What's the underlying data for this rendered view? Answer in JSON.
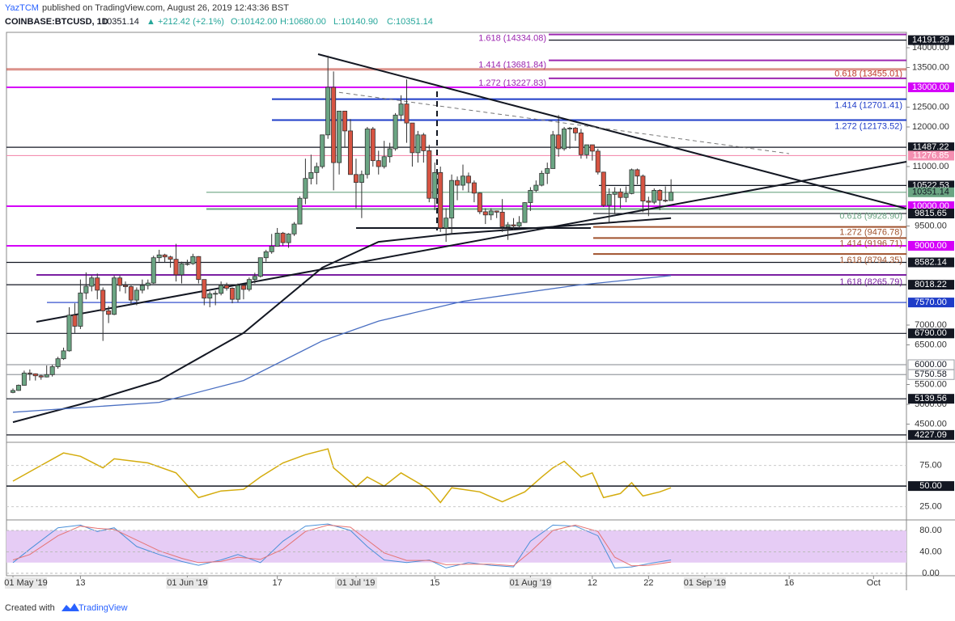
{
  "header": {
    "author": "YazTCM",
    "published": "published on TradingView.com, August 26, 2019 12:43:36 BST",
    "symbol": "COINBASE:BTCUSD, 1D",
    "last": "10351.14",
    "change": "▲ +212.42 (+2.1%)",
    "open": "O:10142.00",
    "high": "H:10680.00",
    "low": "L:10140.90",
    "close": "C:10351.14"
  },
  "footer": {
    "created": "Created with",
    "brand": "TradingView"
  },
  "chart_data": {
    "type": "candlestick",
    "up_color": "#6ba583",
    "down_color": "#d75442",
    "xlim": [
      -1.15,
      158.85
    ],
    "xticks": [
      {
        "value": 0,
        "label": "01 May '19"
      },
      {
        "value": 12,
        "label": "13"
      },
      {
        "value": 31,
        "label": "01 Jun '19"
      },
      {
        "value": 47,
        "label": "17"
      },
      {
        "value": 61,
        "label": "01 Jul '19"
      },
      {
        "value": 75,
        "label": "15"
      },
      {
        "value": 92,
        "label": "01 Aug '19"
      },
      {
        "value": 103,
        "label": "12"
      },
      {
        "value": 113,
        "label": "22"
      },
      {
        "value": 123,
        "label": "01 Sep '19"
      },
      {
        "value": 138,
        "label": "16"
      },
      {
        "value": 153,
        "label": "Oct"
      }
    ],
    "ylim": [
      4082,
      14388
    ],
    "yticks": [
      {
        "value": 14000,
        "label": "14000.00"
      },
      {
        "value": 13500,
        "label": "13500.00"
      },
      {
        "value": 12500,
        "label": "12500.00"
      },
      {
        "value": 12000,
        "label": "12000.00"
      },
      {
        "value": 11000,
        "label": "11000.00"
      },
      {
        "value": 9500,
        "label": "9500.00"
      },
      {
        "value": 7000,
        "label": "7000.00"
      },
      {
        "value": 6500,
        "label": "6500.00"
      },
      {
        "value": 5500,
        "label": "5500.00"
      },
      {
        "value": 5000,
        "label": "5000.00"
      },
      {
        "value": 4500,
        "label": "4500.00"
      }
    ],
    "levels": [
      {
        "value": 14191.29,
        "label": "14191.29",
        "color": "#131722"
      },
      {
        "value": 13000,
        "label": "13000.00",
        "color": "#d500f9"
      },
      {
        "value": 11487.22,
        "label": "11487.22",
        "color": "#131722"
      },
      {
        "value": 11276.85,
        "label": "11276.85",
        "color": "#f48fb1"
      },
      {
        "value": 10522.53,
        "label": "10522.53",
        "color": "#131722"
      },
      {
        "value": 10351.14,
        "label": "10351.14",
        "color": "#6ba583"
      },
      {
        "value": 10000,
        "label": "10000.00",
        "color": "#d500f9"
      },
      {
        "value": 9815.65,
        "label": "9815.65",
        "color": "#131722"
      },
      {
        "value": 9000,
        "label": "9000.00",
        "color": "#d500f9"
      },
      {
        "value": 8582.14,
        "label": "8582.14",
        "color": "#131722"
      },
      {
        "value": 8018.22,
        "label": "8018.22",
        "color": "#131722"
      },
      {
        "value": 7570,
        "label": "7570.00",
        "color": "#1e3cc8"
      },
      {
        "value": 6790,
        "label": "6790.00",
        "color": "#131722"
      },
      {
        "value": 6000,
        "label": "6000.00",
        "color": "#b0b3b8"
      },
      {
        "value": 5750.58,
        "label": "5750.58",
        "color": "#b0b3b8"
      },
      {
        "value": 5139.56,
        "label": "5139.56",
        "color": "#131722"
      },
      {
        "value": 4227.09,
        "label": "4227.09",
        "color": "#131722"
      }
    ],
    "fibs": [
      {
        "value": 14334.08,
        "label": "1.618 (14334.08)",
        "color": "#9c27b0"
      },
      {
        "value": 13681.84,
        "label": "1.414 (13681.84)",
        "color": "#9c27b0"
      },
      {
        "value": 13455.01,
        "label": "0.618 (13455.01)",
        "color": "#c0392b"
      },
      {
        "value": 13227.83,
        "label": "1.272 (13227.83)",
        "color": "#9c27b0"
      },
      {
        "value": 12701.41,
        "label": "1.414 (12701.41)",
        "color": "#1e3cc8"
      },
      {
        "value": 12173.52,
        "label": "1.272 (12173.52)",
        "color": "#1e3cc8"
      },
      {
        "value": 9928.9,
        "label": "0.618 (9928.90)",
        "color": "#6ba583"
      },
      {
        "value": 9476.78,
        "label": "1.272 (9476.78)",
        "color": "#a0522d"
      },
      {
        "value": 9196.71,
        "label": "1.414 (9196.71)",
        "color": "#a0522d"
      },
      {
        "value": 8794.35,
        "label": "1.618 (8794.35)",
        "color": "#a0522d"
      },
      {
        "value": 8265.79,
        "label": "1.618 (8265.79)",
        "color": "#7b1fa2"
      }
    ],
    "ohlc": [
      [
        5300,
        5400,
        5280,
        5350
      ],
      [
        5350,
        5500,
        5340,
        5480
      ],
      [
        5480,
        5850,
        5470,
        5790
      ],
      [
        5790,
        5880,
        5600,
        5770
      ],
      [
        5770,
        5780,
        5600,
        5720
      ],
      [
        5720,
        5750,
        5620,
        5690
      ],
      [
        5690,
        5980,
        5680,
        5750
      ],
      [
        5750,
        6000,
        5700,
        5950
      ],
      [
        5950,
        6200,
        5900,
        6150
      ],
      [
        6150,
        6430,
        6120,
        6350
      ],
      [
        6350,
        7450,
        6330,
        7250
      ],
      [
        7250,
        7550,
        6800,
        6970
      ],
      [
        6970,
        8150,
        6900,
        7810
      ],
      [
        7810,
        8330,
        7650,
        7980
      ],
      [
        7980,
        8250,
        7850,
        8190
      ],
      [
        8190,
        8300,
        7650,
        7880
      ],
      [
        7880,
        7950,
        6600,
        7360
      ],
      [
        7360,
        7480,
        7050,
        7270
      ],
      [
        7270,
        8250,
        7250,
        8190
      ],
      [
        8190,
        8250,
        7850,
        8000
      ],
      [
        8000,
        8100,
        7800,
        7970
      ],
      [
        7970,
        8000,
        7500,
        7630
      ],
      [
        7630,
        7950,
        7500,
        7880
      ],
      [
        7880,
        8150,
        7800,
        8000
      ],
      [
        8000,
        8150,
        7900,
        8060
      ],
      [
        8060,
        8750,
        8040,
        8700
      ],
      [
        8700,
        8900,
        8600,
        8770
      ],
      [
        8770,
        8800,
        8580,
        8720
      ],
      [
        8720,
        8750,
        8450,
        8660
      ],
      [
        8660,
        9050,
        8100,
        8270
      ],
      [
        8270,
        8600,
        8050,
        8550
      ],
      [
        8550,
        8650,
        8500,
        8550
      ],
      [
        8550,
        8800,
        8520,
        8730
      ],
      [
        8730,
        8740,
        8050,
        8150
      ],
      [
        8150,
        8150,
        7500,
        7680
      ],
      [
        7680,
        7850,
        7450,
        7790
      ],
      [
        7790,
        7870,
        7500,
        7800
      ],
      [
        7800,
        8100,
        7750,
        8000
      ],
      [
        8000,
        8070,
        7870,
        7930
      ],
      [
        7930,
        7950,
        7550,
        7650
      ],
      [
        7650,
        8050,
        7580,
        8000
      ],
      [
        8000,
        8000,
        7650,
        7900
      ],
      [
        7900,
        8200,
        7850,
        8150
      ],
      [
        8150,
        8320,
        8050,
        8230
      ],
      [
        8230,
        8700,
        8200,
        8700
      ],
      [
        8700,
        8900,
        8600,
        8850
      ],
      [
        8850,
        9300,
        8800,
        8990
      ],
      [
        8990,
        9450,
        8990,
        9320
      ],
      [
        9320,
        9350,
        9000,
        9080
      ],
      [
        9080,
        9320,
        8950,
        9300
      ],
      [
        9300,
        9600,
        9250,
        9550
      ],
      [
        9550,
        10250,
        9550,
        10200
      ],
      [
        10200,
        11200,
        10050,
        10700
      ],
      [
        10700,
        11300,
        10550,
        10850
      ],
      [
        10850,
        11100,
        10550,
        11000
      ],
      [
        11000,
        11800,
        10950,
        11800
      ],
      [
        11800,
        13800,
        11700,
        13000
      ],
      [
        13000,
        13400,
        10400,
        11100
      ],
      [
        11100,
        12400,
        10800,
        12400
      ],
      [
        12400,
        12400,
        11500,
        11900
      ],
      [
        11900,
        12200,
        10800,
        10800
      ],
      [
        10800,
        11200,
        9950,
        10600
      ],
      [
        10600,
        10900,
        9700,
        10800
      ],
      [
        10800,
        12000,
        10700,
        11950
      ],
      [
        11950,
        12000,
        11000,
        11150
      ],
      [
        11150,
        11400,
        10800,
        11000
      ],
      [
        11000,
        11650,
        10950,
        11250
      ],
      [
        11250,
        11600,
        11100,
        11450
      ],
      [
        11450,
        12350,
        11400,
        12300
      ],
      [
        12300,
        12800,
        12150,
        12580
      ],
      [
        12580,
        13200,
        11600,
        12100
      ],
      [
        12100,
        12100,
        11000,
        11350
      ],
      [
        11350,
        11900,
        11100,
        11800
      ],
      [
        11800,
        11850,
        11100,
        11400
      ],
      [
        11400,
        11550,
        10100,
        10200
      ],
      [
        10200,
        11100,
        9900,
        10850
      ],
      [
        10850,
        11000,
        9350,
        9450
      ],
      [
        9450,
        9950,
        9100,
        9700
      ],
      [
        9700,
        10800,
        9300,
        10650
      ],
      [
        10650,
        10750,
        10150,
        10530
      ],
      [
        10530,
        11050,
        10400,
        10760
      ],
      [
        10760,
        10850,
        10350,
        10590
      ],
      [
        10590,
        10650,
        10100,
        10330
      ],
      [
        10330,
        10350,
        9800,
        9860
      ],
      [
        9860,
        9950,
        9550,
        9780
      ],
      [
        9780,
        9950,
        9650,
        9880
      ],
      [
        9880,
        9890,
        9700,
        9850
      ],
      [
        9850,
        10180,
        9350,
        9480
      ],
      [
        9480,
        9600,
        9150,
        9530
      ],
      [
        9530,
        9700,
        9400,
        9500
      ],
      [
        9500,
        9750,
        9450,
        9590
      ],
      [
        9590,
        10100,
        9580,
        10090
      ],
      [
        10090,
        10480,
        9880,
        10400
      ],
      [
        10400,
        10650,
        10350,
        10530
      ],
      [
        10530,
        10900,
        10500,
        10830
      ],
      [
        10830,
        11100,
        10560,
        10950
      ],
      [
        10950,
        11900,
        10950,
        11800
      ],
      [
        11800,
        12300,
        11250,
        11450
      ],
      [
        11450,
        12000,
        11400,
        11950
      ],
      [
        11950,
        12000,
        11450,
        11970
      ],
      [
        11970,
        12000,
        11650,
        11850
      ],
      [
        11850,
        11950,
        11200,
        11300
      ],
      [
        11300,
        11550,
        11200,
        11550
      ],
      [
        11550,
        11550,
        11150,
        11390
      ],
      [
        11390,
        11450,
        10800,
        10860
      ],
      [
        10860,
        10870,
        9980,
        10020
      ],
      [
        10020,
        10450,
        9600,
        10300
      ],
      [
        10300,
        10480,
        9800,
        10360
      ],
      [
        10360,
        10450,
        9950,
        10220
      ],
      [
        10220,
        10500,
        10100,
        10320
      ],
      [
        10320,
        10950,
        10300,
        10920
      ],
      [
        10920,
        10950,
        10550,
        10760
      ],
      [
        10760,
        10800,
        9850,
        10130
      ],
      [
        10130,
        10240,
        9750,
        10100
      ],
      [
        10100,
        10450,
        10050,
        10400
      ],
      [
        10400,
        10430,
        9900,
        10150
      ],
      [
        10150,
        10500,
        10100,
        10142
      ],
      [
        10142,
        10680,
        10140.9,
        10351.14
      ]
    ],
    "moving_averages": [
      {
        "color": "#131722",
        "x": [
          0,
          12,
          26,
          41,
          55,
          65,
          78,
          98,
          117
        ],
        "values": [
          4550,
          5000,
          5600,
          6800,
          8450,
          9100,
          9300,
          9500,
          9700
        ]
      },
      {
        "color": "#4a6fc2",
        "x": [
          0,
          26,
          41,
          55,
          65,
          80,
          100,
          117
        ],
        "values": [
          4800,
          5050,
          5600,
          6600,
          7100,
          7600,
          8000,
          8250
        ]
      }
    ],
    "rsi": {
      "color": "#d4ac0d",
      "ylim": [
        9,
        101
      ],
      "yticks": [
        {
          "value": 75,
          "label": "75.00"
        },
        {
          "value": 50,
          "label": "50.00",
          "boxed": true
        },
        {
          "value": 25,
          "label": "25.00"
        }
      ],
      "x": [
        0,
        5,
        9,
        12,
        16,
        18,
        24,
        29,
        33,
        37,
        41,
        44,
        48,
        52,
        56,
        57,
        61,
        63,
        66,
        69,
        74,
        76,
        78,
        83,
        87,
        91,
        94,
        96,
        98,
        101,
        103,
        105,
        108,
        110,
        112,
        115,
        117
      ],
      "values": [
        56,
        75,
        90,
        86,
        72,
        83,
        78,
        66,
        36,
        44,
        46,
        61,
        78,
        88,
        95,
        72,
        49,
        61,
        50,
        66,
        46,
        30,
        48,
        43,
        31,
        43,
        61,
        72,
        80,
        61,
        66,
        36,
        41,
        54,
        38,
        43,
        48
      ]
    },
    "stoch": {
      "ylim": [
        -4.5,
        96.6
      ],
      "band": [
        20,
        80
      ],
      "band_color": "#e6ccf5",
      "yticks": [
        {
          "value": 80,
          "label": "80.00"
        },
        {
          "value": 40,
          "label": "40.00"
        },
        {
          "value": 0,
          "label": "0.00"
        }
      ],
      "series": [
        {
          "color": "#4a90d9",
          "x": [
            0,
            3,
            8,
            12,
            15,
            18,
            22,
            26,
            30,
            33,
            37,
            40,
            44,
            48,
            52,
            56,
            60,
            63,
            66,
            70,
            74,
            77,
            81,
            85,
            89,
            92,
            96,
            100,
            104,
            107,
            110,
            113,
            117
          ],
          "values": [
            20,
            45,
            85,
            90,
            78,
            85,
            50,
            35,
            22,
            15,
            25,
            35,
            20,
            60,
            88,
            92,
            80,
            50,
            25,
            20,
            25,
            10,
            20,
            15,
            12,
            60,
            90,
            88,
            70,
            10,
            12,
            18,
            25
          ]
        },
        {
          "color": "#e57373",
          "x": [
            0,
            3,
            8,
            12,
            15,
            18,
            22,
            26,
            30,
            33,
            37,
            40,
            44,
            48,
            52,
            56,
            60,
            63,
            66,
            70,
            74,
            77,
            81,
            85,
            89,
            92,
            96,
            100,
            104,
            107,
            110,
            113,
            117
          ],
          "values": [
            25,
            35,
            70,
            88,
            84,
            82,
            62,
            42,
            28,
            20,
            22,
            30,
            26,
            45,
            78,
            90,
            86,
            62,
            38,
            24,
            24,
            16,
            17,
            17,
            14,
            40,
            80,
            90,
            78,
            30,
            14,
            15,
            21
          ]
        }
      ]
    }
  }
}
